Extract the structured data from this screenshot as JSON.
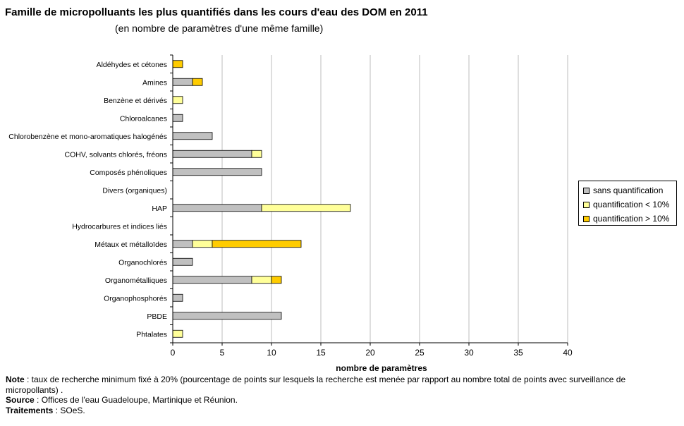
{
  "chart_data": {
    "type": "bar",
    "orientation": "horizontal",
    "stacked": true,
    "title": "Famille de micropolluants les plus quantifiés dans les cours d'eau des DOM en 2011",
    "subtitle": "(en nombre de paramètres d'une même famille)",
    "xlabel": "nombre de paramètres",
    "xlim": [
      0,
      40
    ],
    "xticks": [
      0,
      5,
      10,
      15,
      20,
      25,
      30,
      35,
      40
    ],
    "grid": "vertical",
    "legend_position": "right",
    "categories": [
      "Aldéhydes et cétones",
      "Amines",
      "Benzène et dérivés",
      "Chloroalcanes",
      "Chlorobenzène et mono-aromatiques halogénés",
      "COHV, solvants chlorés, fréons",
      "Composés phénoliques",
      "Divers (organiques)",
      "HAP",
      "Hydrocarbures et indices liés",
      "Métaux et métalloïdes",
      "Organochlorés",
      "Organométalliques",
      "Organophosphorés",
      "PBDE",
      "Phtalates"
    ],
    "series": [
      {
        "name": "sans quantification",
        "color": "#c0c0c0",
        "values": [
          0,
          2,
          0,
          1,
          4,
          8,
          9,
          0,
          9,
          0,
          2,
          2,
          8,
          1,
          11,
          0
        ]
      },
      {
        "name": "quantification < 10%",
        "color": "#ffff99",
        "values": [
          0,
          0,
          1,
          0,
          0,
          1,
          0,
          0,
          9,
          0,
          2,
          0,
          2,
          0,
          0,
          1
        ]
      },
      {
        "name": "quantification > 10%",
        "color": "#ffcc00",
        "values": [
          1,
          1,
          0,
          0,
          0,
          0,
          0,
          0,
          0,
          0,
          9,
          0,
          1,
          0,
          0,
          0
        ]
      }
    ]
  },
  "notes": {
    "note_label": "Note",
    "note_text": " : taux de recherche minimum fixé à 20% (pourcentage de points sur lesquels la recherche est menée par rapport au nombre total de points avec surveillance de micropollants) .",
    "source_label": "Source",
    "source_text": " : Offices de l'eau Guadeloupe, Martinique et Réunion.",
    "treatment_label": "Traitements",
    "treatment_text": " : SOeS."
  }
}
